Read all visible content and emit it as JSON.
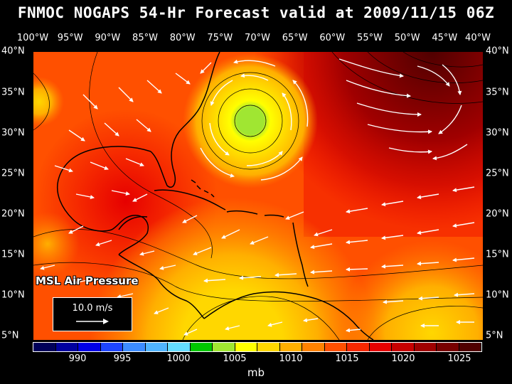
{
  "title": "FNMOC NOGAPS 54-Hr Forecast valid at 2009/11/15 06Z",
  "lon_labels": [
    "100°W",
    "95°W",
    "90°W",
    "85°W",
    "80°W",
    "75°W",
    "70°W",
    "65°W",
    "60°W",
    "55°W",
    "50°W",
    "45°W",
    "40°W"
  ],
  "lat_labels": [
    "40°N",
    "35°N",
    "30°N",
    "25°N",
    "20°N",
    "15°N",
    "10°N",
    "5°N"
  ],
  "field_label": "MSL Air Pressure",
  "vector_reference": "10.0 m/s",
  "colorbar": {
    "colors": [
      "#00005a",
      "#0000a0",
      "#0000e6",
      "#1e46ff",
      "#3c8cff",
      "#50b4ff",
      "#64dcff",
      "#00c800",
      "#a0e632",
      "#ffff00",
      "#ffd700",
      "#ffaf00",
      "#ff8200",
      "#ff5000",
      "#f52800",
      "#e60000",
      "#c80000",
      "#a00000",
      "#780000",
      "#500000"
    ],
    "tick_labels": [
      "990",
      "995",
      "1000",
      "1005",
      "1010",
      "1015",
      "1020",
      "1025"
    ],
    "unit": "mb"
  },
  "colors": {
    "background": "#000000",
    "text": "#ffffff",
    "coastline": "#000000",
    "vectors": "#ffffff"
  }
}
